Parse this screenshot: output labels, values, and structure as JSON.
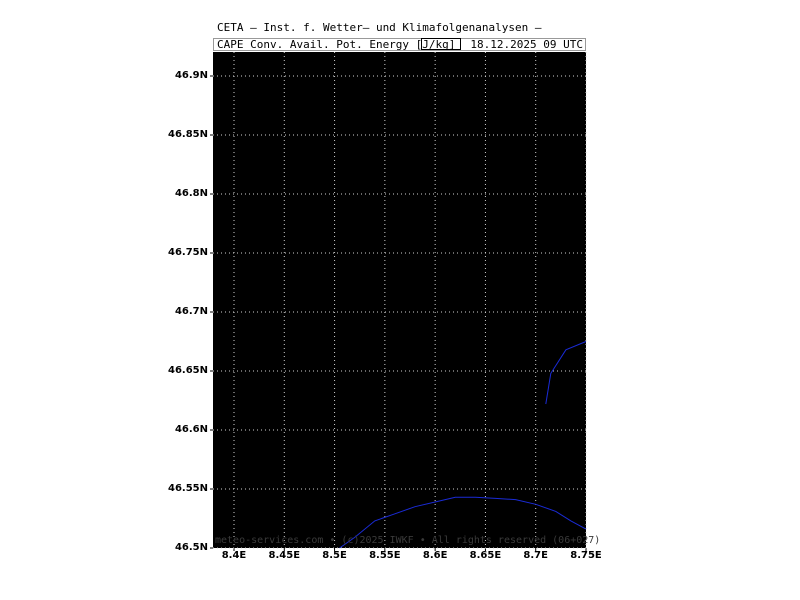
{
  "header": {
    "title": "CETA — Inst. f. Wetter— und Klimafolgenanalysen —",
    "variable": "CAPE Conv. Avail. Pot. Energy [J/kg]",
    "datetime": "18.12.2025 09 UTC"
  },
  "footer": {
    "credit": "meteo-services.com • (c)2025 IWKF • All rights reserved (06+027)"
  },
  "map": {
    "background_color": "#000000",
    "grid_color": "#cfcfcf",
    "contour_color": "#1a2bd6",
    "lat_labels": [
      "46.9N",
      "46.85N",
      "46.8N",
      "46.75N",
      "46.7N",
      "46.65N",
      "46.6N",
      "46.55N",
      "46.5N"
    ],
    "lon_labels": [
      "8.4E",
      "8.45E",
      "8.5E",
      "8.55E",
      "8.6E",
      "8.65E",
      "8.7E",
      "8.75E"
    ],
    "lat_values": [
      46.9,
      46.85,
      46.8,
      46.75,
      46.7,
      46.65,
      46.6,
      46.55,
      46.5
    ],
    "lon_values": [
      8.4,
      8.45,
      8.5,
      8.55,
      8.6,
      8.65,
      8.7,
      8.75
    ],
    "contours": [
      {
        "points": [
          [
            8.505,
            46.5
          ],
          [
            8.52,
            46.509
          ],
          [
            8.54,
            46.523
          ],
          [
            8.56,
            46.529
          ],
          [
            8.58,
            46.535
          ],
          [
            8.6,
            46.539
          ],
          [
            8.62,
            46.543
          ],
          [
            8.64,
            46.543
          ],
          [
            8.66,
            46.542
          ],
          [
            8.68,
            46.541
          ],
          [
            8.7,
            46.537
          ],
          [
            8.72,
            46.531
          ],
          [
            8.735,
            46.523
          ],
          [
            8.75,
            46.516
          ]
        ]
      },
      {
        "points": [
          [
            8.71,
            46.622
          ],
          [
            8.715,
            46.648
          ],
          [
            8.73,
            46.668
          ],
          [
            8.75,
            46.675
          ]
        ]
      }
    ]
  }
}
